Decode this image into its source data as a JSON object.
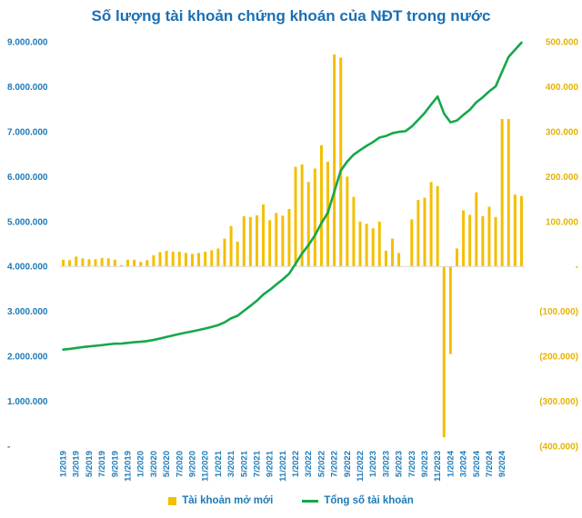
{
  "chart_data": {
    "type": "bar+line",
    "title": "Số lượng tài khoản chứng khoán của NĐT trong nước",
    "x_tick_labels": [
      "1/2019",
      "3/2019",
      "5/2019",
      "7/2019",
      "9/2019",
      "11/2019",
      "1/2020",
      "3/2020",
      "5/2020",
      "7/2020",
      "9/2020",
      "11/2020",
      "1/2021",
      "3/2021",
      "5/2021",
      "7/2021",
      "9/2021",
      "11/2021",
      "1/2022",
      "3/2022",
      "5/2022",
      "7/2022",
      "9/2022",
      "11/2022",
      "1/2023",
      "3/2023",
      "5/2023",
      "7/2023",
      "9/2023",
      "11/2023",
      "1/2024",
      "3/2024",
      "5/2024",
      "7/2024",
      "9/2024"
    ],
    "y_left": {
      "ticks": [
        0,
        1000000,
        2000000,
        3000000,
        4000000,
        5000000,
        6000000,
        7000000,
        8000000,
        9000000
      ],
      "tick_labels": [
        "-",
        "1.000.000",
        "2.000.000",
        "3.000.000",
        "4.000.000",
        "5.000.000",
        "6.000.000",
        "7.000.000",
        "8.000.000",
        "9.000.000"
      ],
      "ylim": [
        0,
        9000000
      ]
    },
    "y_right": {
      "ticks": [
        -400000,
        -300000,
        -200000,
        -100000,
        0,
        100000,
        200000,
        300000,
        400000,
        500000
      ],
      "tick_labels": [
        "(400.000)",
        "(300.000)",
        "(200.000)",
        "(100.000)",
        "-",
        "100.000",
        "200.000",
        "300.000",
        "400.000",
        "500.000"
      ],
      "ylim": [
        -400000,
        500000
      ]
    },
    "series": [
      {
        "name": "Tài khoản mở mới",
        "type": "bar",
        "axis": "right",
        "color": "#f4bf00",
        "values": [
          15000,
          14000,
          22000,
          18000,
          16000,
          16000,
          19000,
          18000,
          15000,
          3000,
          15000,
          15000,
          10000,
          14000,
          25000,
          32000,
          35000,
          33000,
          33000,
          30000,
          28000,
          30000,
          33000,
          36000,
          40000,
          62000,
          90000,
          55000,
          112000,
          110000,
          114000,
          138000,
          103000,
          119000,
          113000,
          128000,
          222000,
          227000,
          188000,
          218000,
          270000,
          233000,
          472000,
          465000,
          200000,
          155000,
          100000,
          95000,
          85000,
          100000,
          35000,
          62000,
          30000,
          0,
          105000,
          148000,
          153000,
          188000,
          179000,
          -380000,
          -195000,
          40000,
          125000,
          115000,
          165000,
          112000,
          133000,
          110000,
          328000,
          328000,
          160000,
          157000
        ]
      },
      {
        "name": "Tổng số tài khoản",
        "type": "line",
        "axis": "left",
        "color": "#15a84a",
        "values": [
          2150000,
          2165000,
          2185000,
          2205000,
          2220000,
          2235000,
          2250000,
          2268000,
          2282000,
          2285000,
          2300000,
          2315000,
          2325000,
          2340000,
          2365000,
          2397000,
          2432000,
          2465000,
          2498000,
          2528000,
          2556000,
          2586000,
          2619000,
          2655000,
          2695000,
          2757000,
          2847000,
          2902000,
          3014000,
          3124000,
          3238000,
          3376000,
          3479000,
          3598000,
          3711000,
          3839000,
          4061000,
          4288000,
          4476000,
          4694000,
          4964000,
          5197000,
          5669000,
          6134000,
          6334000,
          6489000,
          6589000,
          6684000,
          6769000,
          6869000,
          6904000,
          6966000,
          6996000,
          7010000,
          7115000,
          7263000,
          7416000,
          7604000,
          7783000,
          7403000,
          7208000,
          7248000,
          7373000,
          7488000,
          7653000,
          7765000,
          7898000,
          8008000,
          8336000,
          8664000,
          8824000,
          8981000
        ]
      }
    ],
    "legend": {
      "position": "bottom",
      "entries": [
        "Tài khoản mở mới",
        "Tổng số tài khoản"
      ]
    }
  }
}
